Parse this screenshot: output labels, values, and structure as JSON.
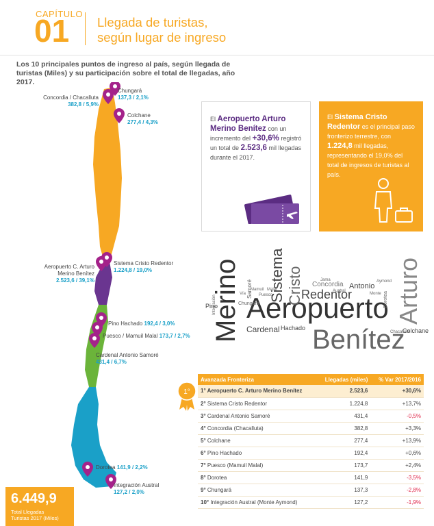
{
  "header": {
    "chapter_label": "CAPÍTULO",
    "chapter_number": "01",
    "title_line1": "Llegada de turistas,",
    "title_line2": "según lugar de ingreso"
  },
  "intro": "Los 10 principales puntos de ingreso al país, según llegada de turistas (Miles) y su participación sobre el total de llegadas, año 2017.",
  "map_labels": {
    "chungara": {
      "name": "Chungará",
      "value": "137,3 / 2,1%"
    },
    "concordia_name": "Concordia / Chacalluta",
    "concordia_value": "382,8 / 5,9%",
    "colchane": {
      "name": "Colchane",
      "value": "277,4 / 4,3%"
    },
    "aeropuerto_line1": "Aeropuerto C. Arturo",
    "aeropuerto_line2": "Merino Benítez",
    "aeropuerto_value": "2.523,6 / 39,1%",
    "cristo": {
      "name": "Sistema Cristo Redentor",
      "value": "1.224,8 / 19,0%"
    },
    "pino": {
      "name": "Pino Hachado",
      "value": "192,4 / 3,0%"
    },
    "puesco": {
      "name": "Puesco / Mamuil Malal",
      "value": "173,7 / 2,7%"
    },
    "samore": {
      "name": "Cardenal Antonio Samoré",
      "value": "431,4 / 6,7%"
    },
    "dorotea": {
      "name": "Dorotea",
      "value": "141,9 / 2,2%"
    },
    "integracion": {
      "name": "Integración Austral",
      "value": "127,2 / 2,0%"
    }
  },
  "total": {
    "value": "6.449,9",
    "label_line1": "Total Llegadas",
    "label_line2": "Turistas 2017 (Miles)"
  },
  "info_airport": {
    "p1": "El",
    "name": "Aeropuerto Arturo Merino Benítez",
    "p2": "con un incremento del",
    "pct": "+30,6%",
    "p3": "registró un total de",
    "value": "2.523,6",
    "p4": "mil llegadas durante el 2017."
  },
  "info_cristo": {
    "p1": "El",
    "name": "Sistema Cristo Redentor",
    "p2": "es el principal paso fronterizo terrestre, con",
    "value": "1.224,8",
    "p3": "mil llegadas, representando el 19,0% del total de ingresos de turistas al país."
  },
  "word_cloud": {
    "w1": "Aeropuerto",
    "w2": "Merino",
    "w3": "Benítez",
    "w4": "Arturo",
    "w5": "Sistema",
    "w6": "Cristo",
    "w7": "Redentor",
    "w8": "Cardenal",
    "w9": "Hachado",
    "w10": "Concordia",
    "w11": "Antonio",
    "w12": "Colchane",
    "w13": "Samoré",
    "w14": "Pino",
    "w15": "Dorotea",
    "w16": "Chungará",
    "w17": "Puesco",
    "w18": "Integración",
    "w19": "Austral",
    "w20": "Monte",
    "w21": "Aymond",
    "w22": "Chacalluta",
    "w23": "Mamuil",
    "w24": "Malal",
    "w25": "Vía",
    "w26": "Jama"
  },
  "table": {
    "headers": [
      "Avanzada Fronteriza",
      "Llegadas (miles)",
      "% Var 2017/2016"
    ],
    "rows": [
      {
        "rank": "1°",
        "name": "Aeropuerto C. Arturo Merino Benítez",
        "value": "2.523,6",
        "var": "+30,6%"
      },
      {
        "rank": "2°",
        "name": "Sistema Cristo Redentor",
        "value": "1.224,8",
        "var": "+13,7%"
      },
      {
        "rank": "3°",
        "name": "Cardenal Antonio Samoré",
        "value": "431,4",
        "var": "-0,5%"
      },
      {
        "rank": "4°",
        "name": "Concordia (Chacalluta)",
        "value": "382,8",
        "var": "+3,3%"
      },
      {
        "rank": "5°",
        "name": "Colchane",
        "value": "277,4",
        "var": "+13,9%"
      },
      {
        "rank": "6°",
        "name": "Pino Hachado",
        "value": "192,4",
        "var": "+0,6%"
      },
      {
        "rank": "7°",
        "name": "Puesco (Mamuil Malal)",
        "value": "173,7",
        "var": "+2,4%"
      },
      {
        "rank": "8°",
        "name": "Dorotea",
        "value": "141,9",
        "var": "-3,5%"
      },
      {
        "rank": "9°",
        "name": "Chungará",
        "value": "137,3",
        "var": "-2,8%"
      },
      {
        "rank": "10°",
        "name": "Integración Austral (Monte Aymond)",
        "value": "127,2",
        "var": "-1,9%"
      }
    ]
  },
  "medal_text": "1°",
  "colors": {
    "orange": "#f7a823",
    "purple": "#5b2c82",
    "green": "#6bb43a",
    "blue": "#1aa0c8",
    "negative": "#e0284a"
  }
}
